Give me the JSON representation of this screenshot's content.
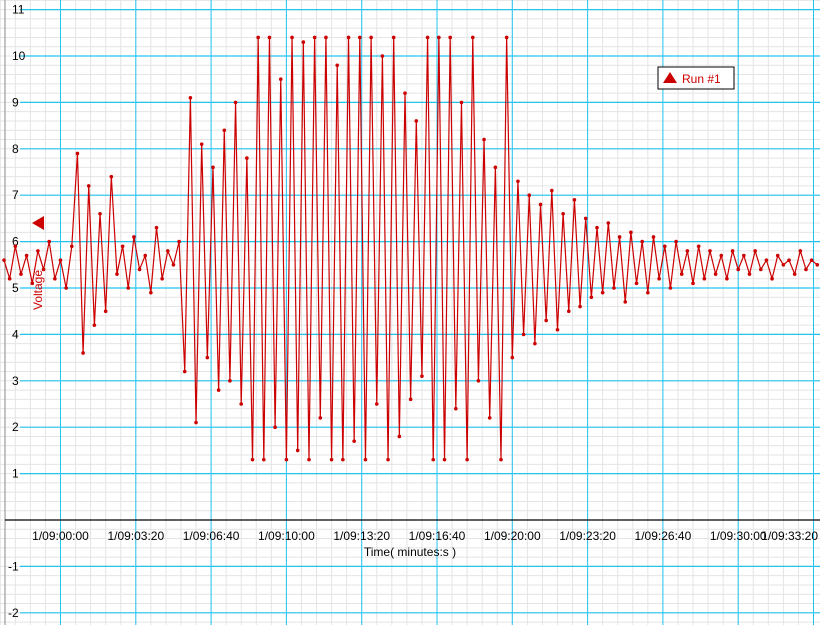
{
  "chart_data": {
    "type": "line",
    "xlabel": "Time( minutes:s )",
    "ylabel": "Voltage",
    "x_tick_labels": [
      "1/09:00:00",
      "1/09:03:20",
      "1/09:06:40",
      "1/09:10:00",
      "1/09:13:20",
      "1/09:16:40",
      "1/09:20:00",
      "1/09:23:20",
      "1/09:26:40",
      "1/09:30:00",
      "1/09:33:20"
    ],
    "y_ticks": [
      -2,
      -1,
      1,
      2,
      3,
      4,
      5,
      6,
      7,
      8,
      9,
      10,
      11
    ],
    "ylim": [
      -2.2,
      11.2
    ],
    "grid": true,
    "legend_position": "top-right",
    "series": [
      {
        "name": "Run #1",
        "color": "#cc0000",
        "start_time": "1/08:57:30",
        "interval_s": 15,
        "values": [
          5.6,
          5.2,
          5.9,
          5.3,
          5.7,
          5.1,
          5.8,
          5.4,
          6.0,
          5.2,
          5.6,
          5.0,
          5.9,
          7.9,
          3.6,
          7.2,
          4.2,
          6.6,
          4.5,
          7.4,
          5.3,
          5.9,
          5.0,
          6.1,
          5.4,
          5.7,
          4.9,
          6.3,
          5.2,
          5.8,
          5.5,
          6.0,
          3.2,
          9.1,
          2.1,
          8.1,
          3.5,
          7.6,
          2.8,
          8.4,
          3.0,
          9.0,
          2.5,
          7.8,
          1.3,
          10.4,
          1.3,
          10.4,
          2.0,
          9.5,
          1.3,
          10.4,
          1.5,
          10.3,
          1.3,
          10.4,
          2.2,
          10.4,
          1.3,
          9.8,
          1.3,
          10.4,
          1.7,
          10.4,
          1.3,
          10.4,
          2.5,
          10.0,
          1.3,
          10.4,
          1.8,
          9.2,
          2.6,
          8.6,
          3.1,
          10.4,
          1.3,
          10.4,
          1.3,
          10.4,
          2.4,
          9.0,
          1.3,
          10.4,
          3.0,
          8.2,
          2.2,
          7.6,
          1.3,
          10.4,
          3.5,
          7.3,
          4.0,
          7.0,
          3.8,
          6.8,
          4.3,
          7.1,
          4.1,
          6.6,
          4.5,
          6.9,
          4.6,
          6.5,
          4.8,
          6.3,
          4.9,
          6.4,
          5.0,
          6.1,
          4.7,
          6.2,
          5.1,
          6.0,
          4.9,
          6.1,
          5.2,
          5.9,
          5.0,
          6.0,
          5.3,
          5.8,
          5.1,
          5.9,
          5.2,
          5.8,
          5.3,
          5.7,
          5.2,
          5.8,
          5.4,
          5.7,
          5.3,
          5.8,
          5.4,
          5.6,
          5.2,
          5.7,
          5.5,
          5.6,
          5.3,
          5.8,
          5.4,
          5.6,
          5.5
        ]
      }
    ]
  },
  "legend": {
    "label": "Run #1",
    "icon": "triangle-up-icon"
  },
  "colors": {
    "major_grid": "#22c4f0",
    "minor_grid": "#e4e4e4",
    "series": "#cc0000",
    "axis": "#000000"
  }
}
